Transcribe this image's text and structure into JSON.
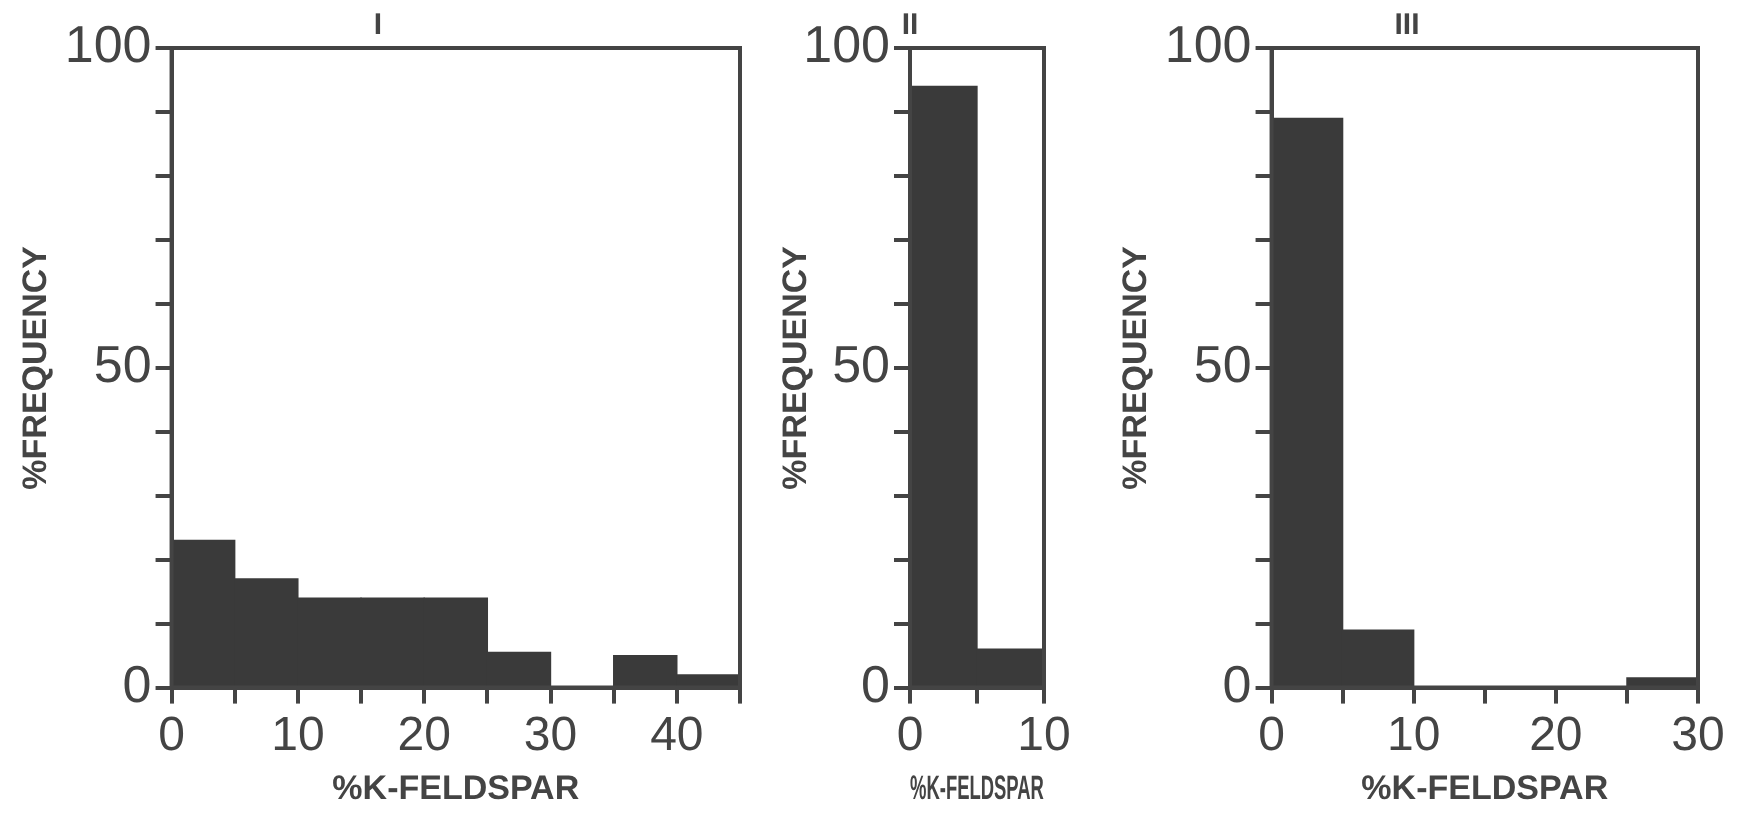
{
  "chart_data": [
    {
      "type": "histogram",
      "title": "I",
      "xlabel": "%K-FELDSPAR",
      "ylabel": "%FREQUENCY",
      "color": "#3a3a3a",
      "grid": false,
      "bins": [
        0,
        5,
        10,
        15,
        20,
        25,
        30,
        35,
        40,
        45
      ],
      "values": [
        23,
        17,
        14,
        14,
        14,
        5.5,
        0,
        5,
        2
      ],
      "xlim": [
        0,
        45
      ],
      "xticks": [
        0,
        {
          "value": 5,
          "label": null
        },
        10,
        {
          "value": 15,
          "label": null
        },
        20,
        {
          "value": 25,
          "label": null
        },
        30,
        {
          "value": 35,
          "label": null
        },
        40,
        {
          "value": 45,
          "label": null
        }
      ],
      "ylim": [
        0,
        100
      ],
      "yticks": [
        0,
        {
          "value": 10,
          "label": null
        },
        {
          "value": 20,
          "label": null
        },
        {
          "value": 30,
          "label": null
        },
        {
          "value": 40,
          "label": null
        },
        50,
        {
          "value": 60,
          "label": null
        },
        {
          "value": 70,
          "label": null
        },
        {
          "value": 80,
          "label": null
        },
        {
          "value": 90,
          "label": null
        },
        100
      ]
    },
    {
      "type": "histogram",
      "title": "II",
      "xlabel": "%K-FELDSPAR",
      "ylabel": "%FREQUENCY",
      "color": "#3a3a3a",
      "grid": false,
      "bins": [
        0,
        5,
        10
      ],
      "values": [
        94,
        6
      ],
      "xlim": [
        0,
        10
      ],
      "xticks": [
        0,
        {
          "value": 5,
          "label": null
        },
        10
      ],
      "ylim": [
        0,
        100
      ],
      "yticks": [
        0,
        {
          "value": 10,
          "label": null
        },
        {
          "value": 20,
          "label": null
        },
        {
          "value": 30,
          "label": null
        },
        {
          "value": 40,
          "label": null
        },
        50,
        {
          "value": 60,
          "label": null
        },
        {
          "value": 70,
          "label": null
        },
        {
          "value": 80,
          "label": null
        },
        {
          "value": 90,
          "label": null
        },
        100
      ]
    },
    {
      "type": "histogram",
      "title": "III",
      "xlabel": "%K-FELDSPAR",
      "ylabel": "%FREQUENCY",
      "color": "#3a3a3a",
      "grid": false,
      "bins": [
        0,
        5,
        10,
        15,
        20,
        25,
        30
      ],
      "values": [
        89,
        9,
        0,
        0,
        0,
        1.5
      ],
      "xlim": [
        0,
        30
      ],
      "xticks": [
        0,
        {
          "value": 5,
          "label": null
        },
        10,
        {
          "value": 15,
          "label": null
        },
        20,
        {
          "value": 25,
          "label": null
        },
        30
      ],
      "ylim": [
        0,
        100
      ],
      "yticks": [
        0,
        {
          "value": 10,
          "label": null
        },
        {
          "value": 20,
          "label": null
        },
        {
          "value": 30,
          "label": null
        },
        {
          "value": 40,
          "label": null
        },
        50,
        {
          "value": 60,
          "label": null
        },
        {
          "value": 70,
          "label": null
        },
        {
          "value": 80,
          "label": null
        },
        {
          "value": 90,
          "label": null
        },
        100
      ]
    }
  ]
}
